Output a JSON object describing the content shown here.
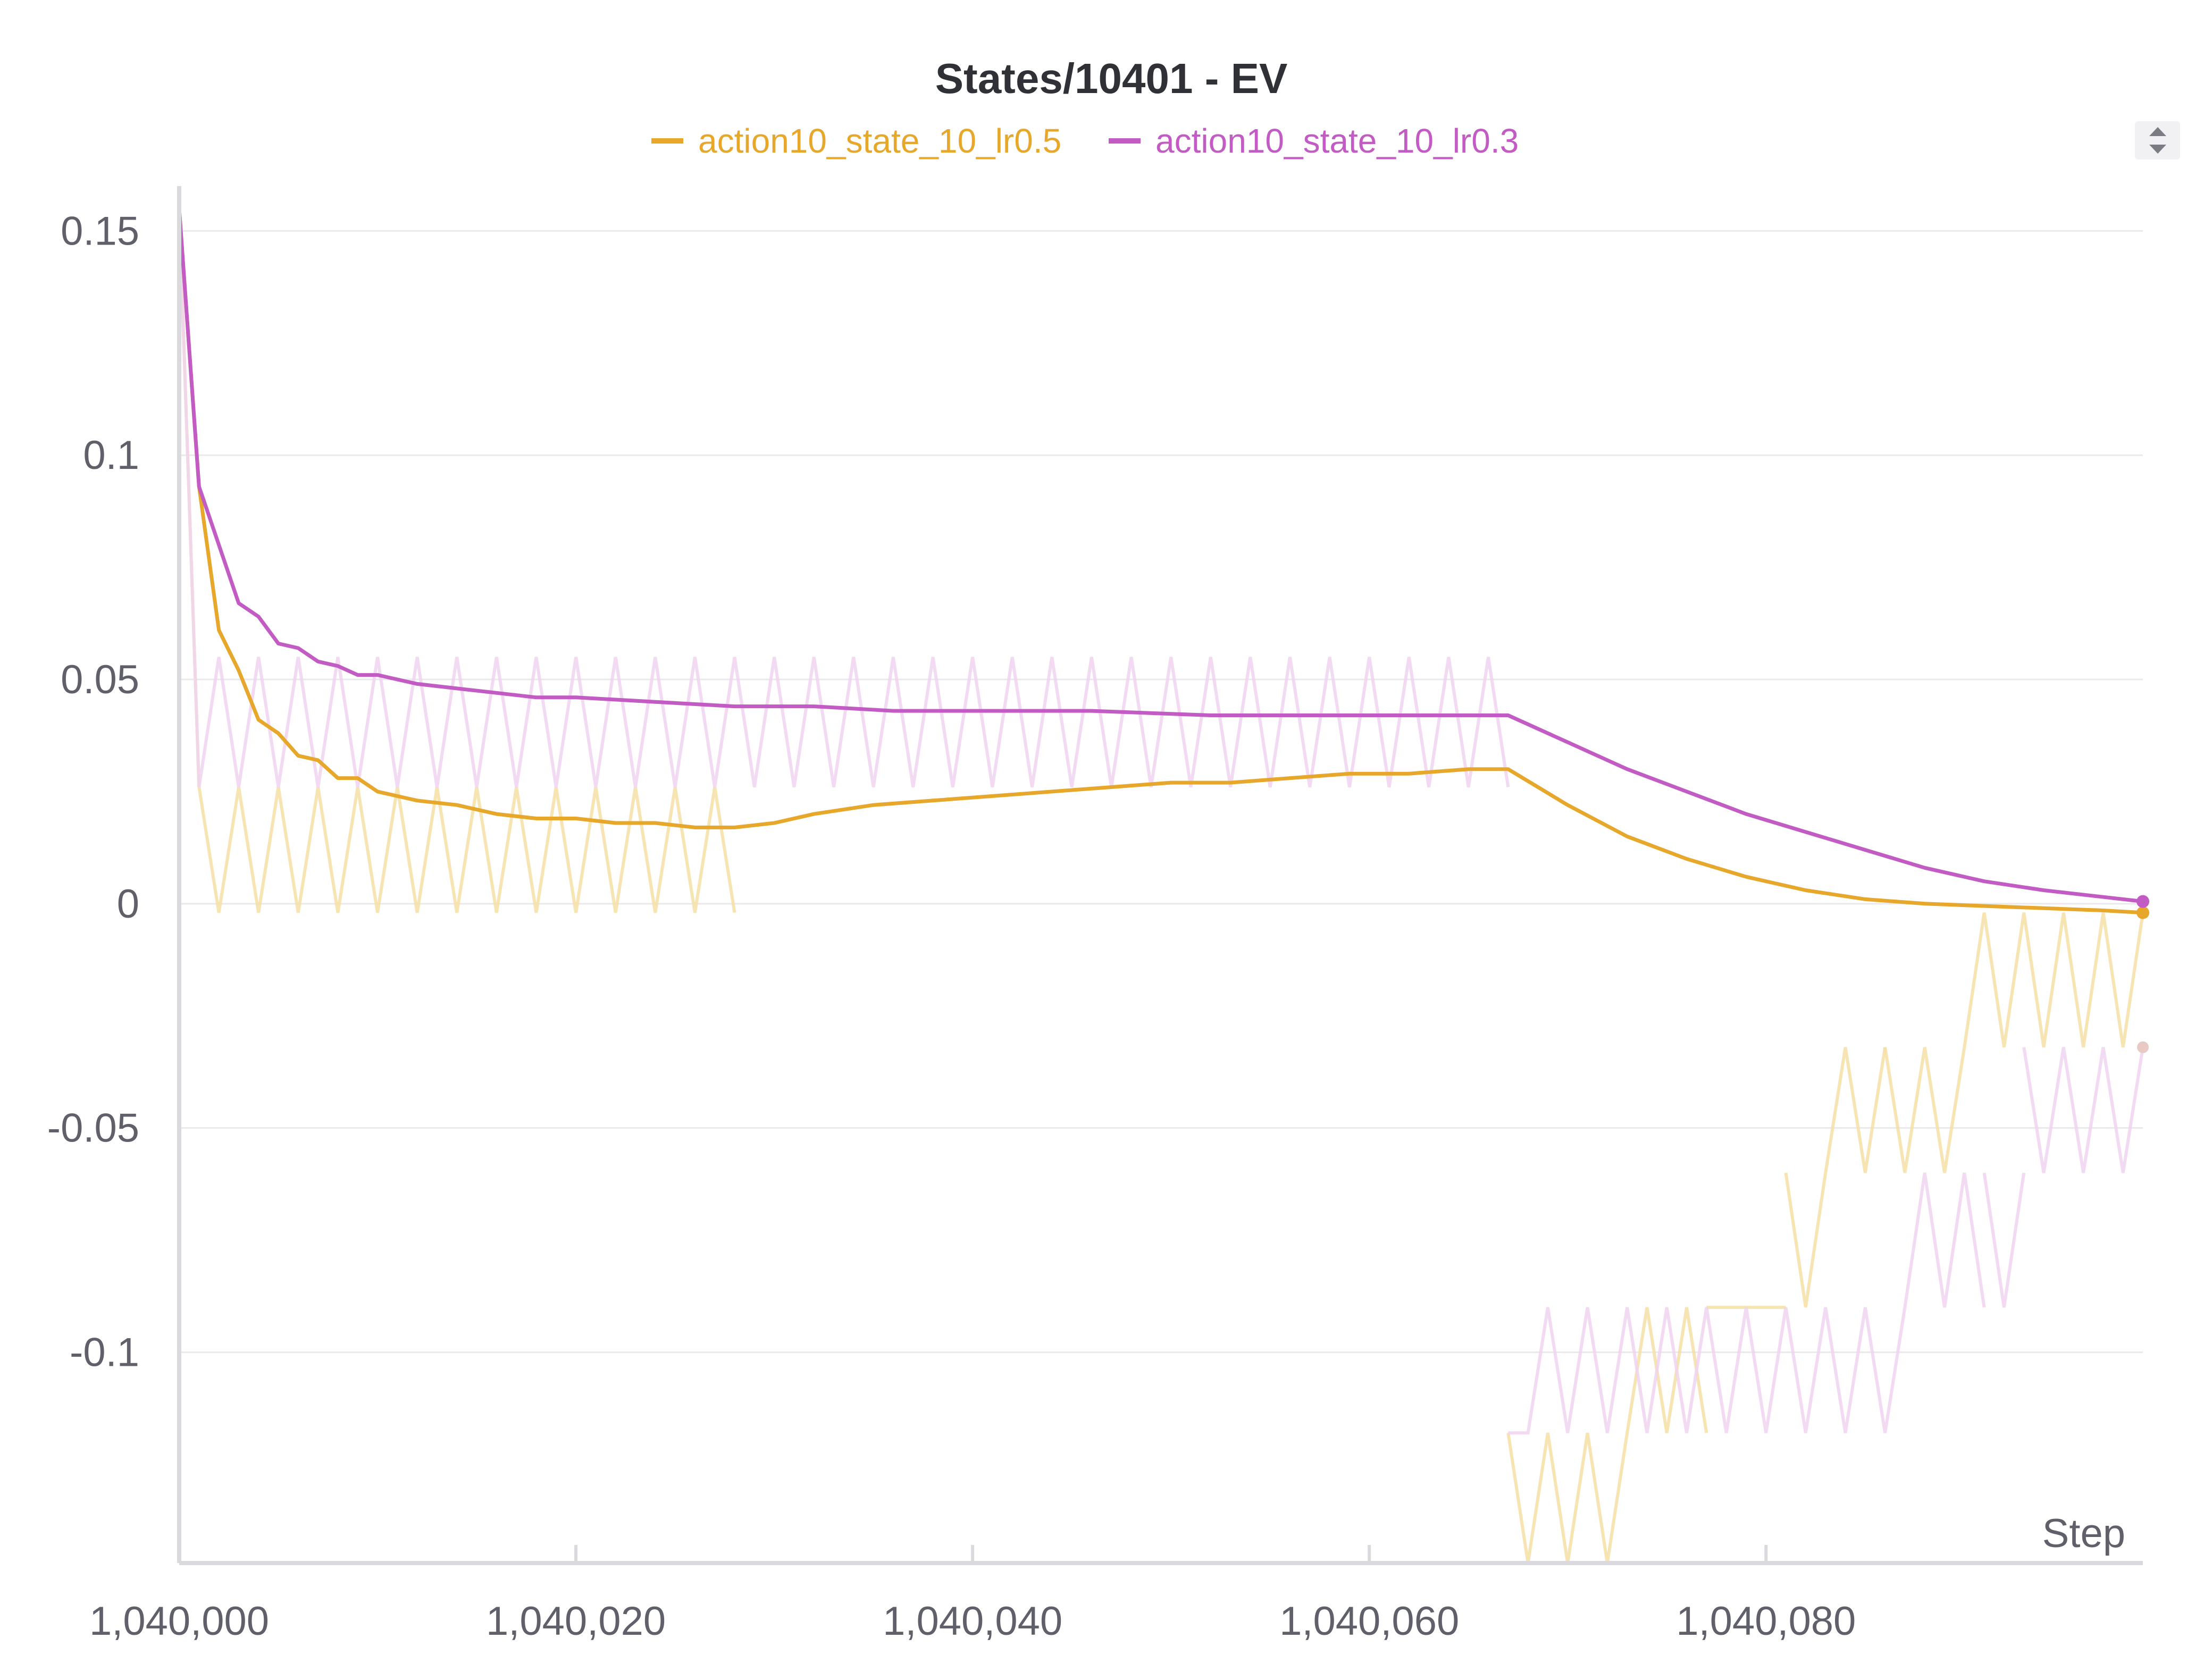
{
  "chart_data": {
    "type": "line",
    "title": "States/10401 - EV",
    "xlabel": "Step",
    "ylabel": "",
    "xlim": [
      1040000,
      1040099
    ],
    "ylim": [
      -0.147,
      0.16
    ],
    "x_ticks": [
      1040000,
      1040020,
      1040040,
      1040060,
      1040080
    ],
    "x_tick_labels": [
      "1,040,000",
      "1,040,020",
      "1,040,040",
      "1,040,060",
      "1,040,080"
    ],
    "y_ticks": [
      0.15,
      0.1,
      0.05,
      0,
      -0.05,
      -0.1
    ],
    "y_tick_labels": [
      "0.15",
      "0.1",
      "0.05",
      "0",
      "-0.05",
      "-0.1"
    ],
    "grid": true,
    "legend_position": "top-center",
    "series": [
      {
        "name": "action10_state_10_lr0.5",
        "color": "#e6a72a",
        "raw_color": "#f6dfa6",
        "raw": {
          "segments": [
            {
              "x_start": 1040000,
              "x_end": 1040028,
              "values": [
                0.155,
                0.026,
                -0.002
              ]
            },
            {
              "x_start": 1040067,
              "x_end": 1040073,
              "values": [
                -0.118,
                -0.147
              ]
            },
            {
              "x_start": 1040073,
              "x_end": 1040077,
              "values": [
                -0.118,
                -0.09
              ]
            },
            {
              "x_start": 1040077,
              "x_end": 1040081,
              "values": [
                -0.09,
                -0.09
              ]
            },
            {
              "x_start": 1040081,
              "x_end": 1040083,
              "values": [
                -0.06,
                -0.09
              ]
            },
            {
              "x_start": 1040083,
              "x_end": 1040086,
              "values": [
                -0.06,
                -0.032
              ]
            },
            {
              "x_start": 1040086,
              "x_end": 1040090,
              "values": [
                -0.032,
                -0.06
              ]
            },
            {
              "x_start": 1040090,
              "x_end": 1040099,
              "values": [
                -0.032,
                -0.002
              ]
            }
          ]
        },
        "smoothed": {
          "x": [
            1040000,
            1040001,
            1040002,
            1040003,
            1040004,
            1040005,
            1040006,
            1040007,
            1040008,
            1040009,
            1040010,
            1040012,
            1040014,
            1040016,
            1040018,
            1040020,
            1040022,
            1040024,
            1040026,
            1040028,
            1040030,
            1040032,
            1040035,
            1040038,
            1040041,
            1040044,
            1040047,
            1040050,
            1040053,
            1040056,
            1040059,
            1040062,
            1040065,
            1040067,
            1040070,
            1040073,
            1040076,
            1040079,
            1040082,
            1040085,
            1040088,
            1040091,
            1040094,
            1040097,
            1040099
          ],
          "values": [
            0.155,
            0.093,
            0.061,
            0.052,
            0.041,
            0.038,
            0.033,
            0.032,
            0.028,
            0.028,
            0.025,
            0.023,
            0.022,
            0.02,
            0.019,
            0.019,
            0.018,
            0.018,
            0.017,
            0.017,
            0.018,
            0.02,
            0.022,
            0.023,
            0.024,
            0.025,
            0.026,
            0.027,
            0.027,
            0.028,
            0.029,
            0.029,
            0.03,
            0.03,
            0.022,
            0.015,
            0.01,
            0.006,
            0.003,
            0.001,
            0.0,
            -0.0005,
            -0.001,
            -0.0015,
            -0.002
          ]
        }
      },
      {
        "name": "action10_state_10_lr0.3",
        "color": "#c25bc3",
        "raw_color": "#efd3f0",
        "raw": {
          "segments": [
            {
              "x_start": 1040000,
              "x_end": 1040067,
              "values": [
                0.155,
                0.026,
                0.055
              ]
            },
            {
              "x_start": 1040067,
              "x_end": 1040087,
              "values": [
                -0.118,
                -0.118,
                -0.09
              ]
            },
            {
              "x_start": 1040087,
              "x_end": 1040091,
              "values": [
                -0.09,
                -0.06
              ]
            },
            {
              "x_start": 1040091,
              "x_end": 1040093,
              "values": [
                -0.06,
                -0.09
              ]
            },
            {
              "x_start": 1040093,
              "x_end": 1040099,
              "values": [
                -0.032,
                -0.06
              ]
            }
          ]
        },
        "smoothed": {
          "x": [
            1040000,
            1040001,
            1040002,
            1040003,
            1040004,
            1040005,
            1040006,
            1040007,
            1040008,
            1040009,
            1040010,
            1040012,
            1040014,
            1040016,
            1040018,
            1040020,
            1040024,
            1040028,
            1040032,
            1040036,
            1040040,
            1040046,
            1040052,
            1040058,
            1040064,
            1040067,
            1040070,
            1040073,
            1040076,
            1040079,
            1040082,
            1040085,
            1040088,
            1040091,
            1040094,
            1040097,
            1040099
          ],
          "values": [
            0.155,
            0.093,
            0.08,
            0.067,
            0.064,
            0.058,
            0.057,
            0.054,
            0.053,
            0.051,
            0.051,
            0.049,
            0.048,
            0.047,
            0.046,
            0.046,
            0.045,
            0.044,
            0.044,
            0.043,
            0.043,
            0.043,
            0.042,
            0.042,
            0.042,
            0.042,
            0.036,
            0.03,
            0.025,
            0.02,
            0.016,
            0.012,
            0.008,
            0.005,
            0.003,
            0.0015,
            0.0005
          ]
        }
      }
    ],
    "overlap_color": "#e9c9c4",
    "end_marker_value": -0.032
  }
}
